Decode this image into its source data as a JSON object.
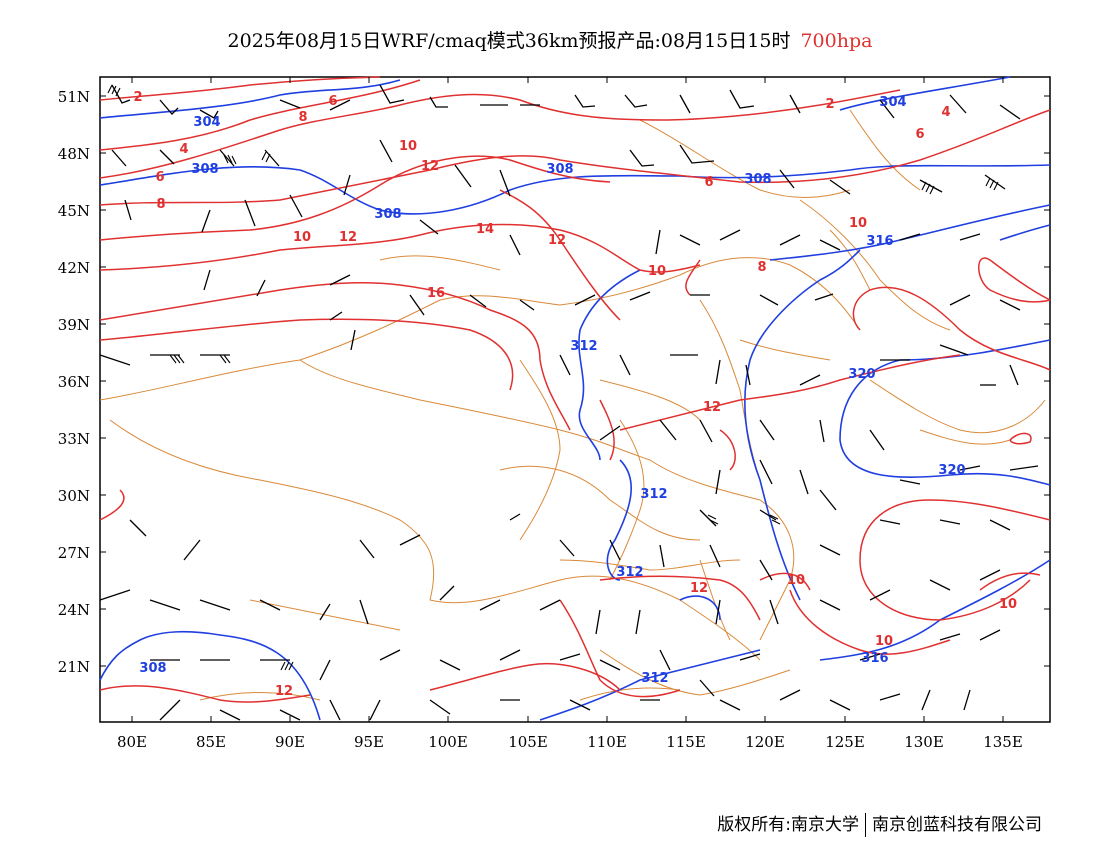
{
  "title": {
    "main": "2025年08月15日WRF/cmaq模式36km预报产品:08月15日15时",
    "level": "700hpa"
  },
  "axes": {
    "lat_labels": [
      "51N",
      "48N",
      "45N",
      "42N",
      "39N",
      "36N",
      "33N",
      "30N",
      "27N",
      "24N",
      "21N"
    ],
    "lon_labels": [
      "80E",
      "85E",
      "90E",
      "95E",
      "100E",
      "105E",
      "110E",
      "115E",
      "120E",
      "125E",
      "130E",
      "135E"
    ]
  },
  "colors": {
    "temperature": "#e03030",
    "height": "#1f3fe0",
    "boundary": "#d98a3a",
    "wind": "#000000"
  },
  "temp_labels": [
    "2",
    "4",
    "6",
    "6",
    "8",
    "8",
    "10",
    "12",
    "14",
    "16",
    "10",
    "12",
    "10",
    "10",
    "12",
    "12",
    "12",
    "10",
    "10",
    "10",
    "8",
    "6",
    "6",
    "4",
    "2",
    "12"
  ],
  "height_labels": [
    "304",
    "308",
    "308",
    "308",
    "304",
    "308",
    "312",
    "312",
    "312",
    "312",
    "316",
    "316",
    "320",
    "320",
    "308"
  ],
  "footer": {
    "left": "版权所有:南京大学",
    "right": "南京创蓝科技有限公司"
  }
}
